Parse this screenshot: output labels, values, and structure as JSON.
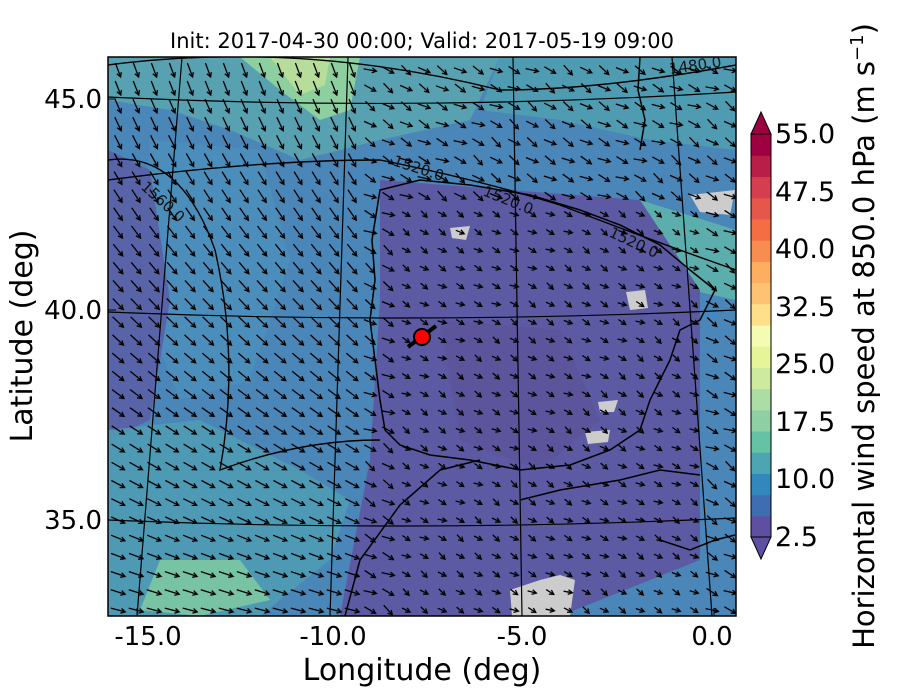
{
  "title": "Init: 2017-04-30 00:00; Valid: 2017-05-19 09:00",
  "xlabel": "Longitude (deg)",
  "ylabel": "Latitude (deg)",
  "x_ticks": [
    "-15.0",
    "-10.0",
    "-5.0",
    "0.0"
  ],
  "y_ticks": [
    "45.0",
    "40.0",
    "35.0"
  ],
  "colorbar": {
    "label_main": "Horizontal wind speed at 850.0 hPa (m s",
    "label_sup": "−1",
    "label_close": ")",
    "ticks": [
      "55.0",
      "47.5",
      "40.0",
      "32.5",
      "25.0",
      "17.5",
      "10.0",
      "2.5"
    ],
    "colors": [
      "#5e4fa2",
      "#3f6db2",
      "#3288bd",
      "#4da5b1",
      "#66c2a5",
      "#8ed0a4",
      "#abdda4",
      "#cdea9f",
      "#e6f598",
      "#f5fbb2",
      "#fee08b",
      "#fdc372",
      "#fdae61",
      "#f88d52",
      "#f46d43",
      "#e55749",
      "#d53e4f",
      "#b81e48",
      "#9e0142"
    ]
  },
  "contour_labels": [
    "1480.0",
    "1520.0",
    "1520.0",
    "1520.0",
    "1560.0"
  ],
  "marker_color": "#ff0000",
  "colors": {
    "ocean_fill": "#4a86b8",
    "land_fill": "#5b5aa3",
    "missing_fill": "#cccccc"
  }
}
